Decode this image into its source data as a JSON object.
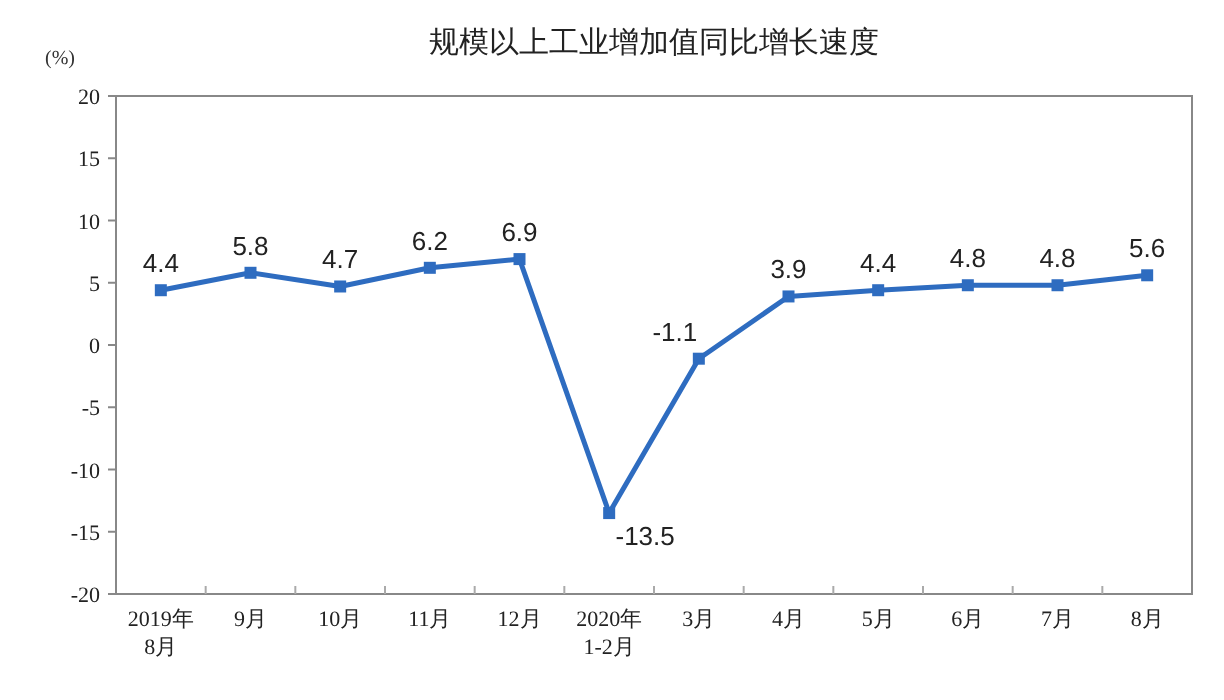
{
  "chart_data": {
    "type": "line",
    "title": "规模以上工业增加值同比增长速度",
    "ylabel": "(%)",
    "categories": [
      "2019年\n8月",
      "9月",
      "10月",
      "11月",
      "12月",
      "2020年\n1-2月",
      "3月",
      "4月",
      "5月",
      "6月",
      "7月",
      "8月"
    ],
    "series": [
      {
        "color": "#2e6cc0",
        "values": [
          4.4,
          5.8,
          4.7,
          6.2,
          6.9,
          -13.5,
          -1.1,
          3.9,
          4.4,
          4.8,
          4.8,
          5.6
        ]
      }
    ],
    "ylim": [
      -20,
      20
    ],
    "yticks": [
      -20,
      -15,
      -10,
      -5,
      0,
      5,
      10,
      15,
      20
    ],
    "marker": "square",
    "line_style": "solid",
    "data_labels": true,
    "grid": false
  }
}
